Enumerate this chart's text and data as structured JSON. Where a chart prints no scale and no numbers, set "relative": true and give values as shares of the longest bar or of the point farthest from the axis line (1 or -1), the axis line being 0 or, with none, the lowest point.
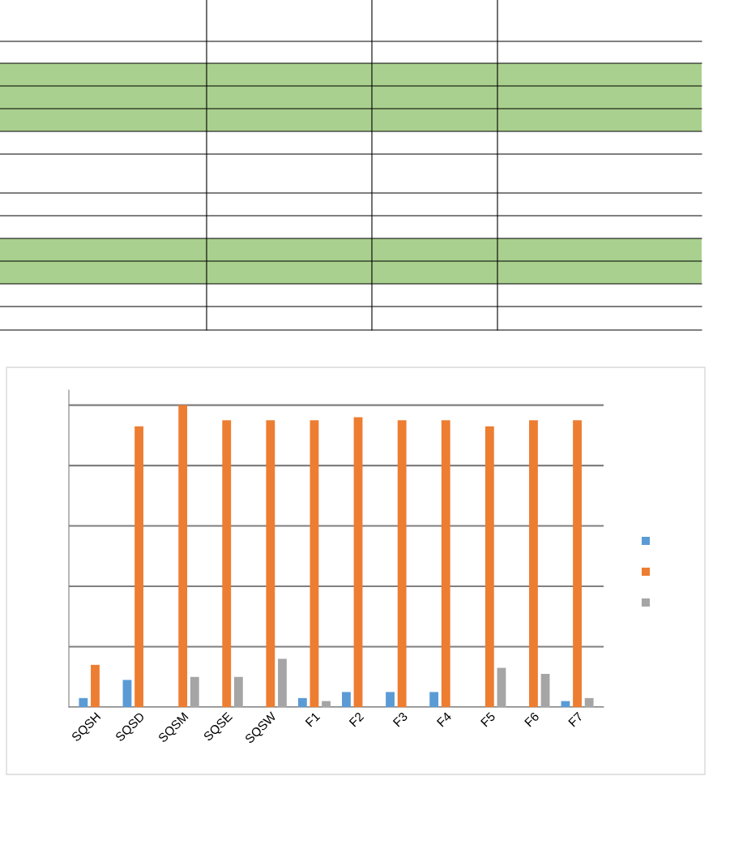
{
  "chart_data": {
    "type": "bar",
    "relative": true,
    "categories": [
      "SQSH",
      "SQSD",
      "SQSM",
      "SQSE",
      "SQSW",
      "F1",
      "F2",
      "F3",
      "F4",
      "F5",
      "F6",
      "F7"
    ],
    "series": [
      {
        "color": "#5b9bd5",
        "values": [
          0.03,
          0.09,
          0,
          0,
          0,
          0.03,
          0.05,
          0.05,
          0.05,
          0,
          0,
          0.02
        ]
      },
      {
        "color": "#ed7d31",
        "values": [
          0.14,
          0.93,
          1,
          0.95,
          0.95,
          0.95,
          0.96,
          0.95,
          0.95,
          0.93,
          0.95,
          0.95
        ]
      },
      {
        "color": "#a5a5a5",
        "values": [
          0,
          0,
          0.1,
          0.1,
          0.16,
          0.02,
          0,
          0,
          0,
          0.13,
          0.11,
          0.03
        ]
      }
    ],
    "grid": "y"
  }
}
